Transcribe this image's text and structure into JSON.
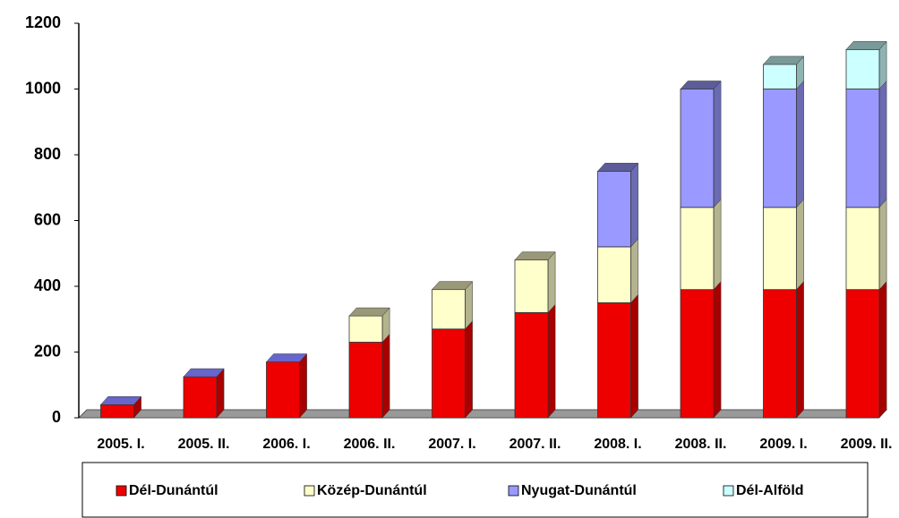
{
  "chart_data": {
    "type": "bar",
    "stacked": true,
    "categories": [
      "2005. I.",
      "2005. II.",
      "2006. I.",
      "2006. II.",
      "2007. I.",
      "2007. II.",
      "2008. I.",
      "2008. II.",
      "2009. I.",
      "2009. II."
    ],
    "series": [
      {
        "name": "Dél-Dunántúl",
        "color": "#ee0000",
        "values": [
          40,
          125,
          170,
          230,
          270,
          320,
          350,
          390,
          390,
          390
        ]
      },
      {
        "name": "Közép-Dunántúl",
        "color": "#ffffcc",
        "values": [
          0,
          0,
          0,
          80,
          120,
          160,
          170,
          250,
          250,
          250
        ]
      },
      {
        "name": "Nyugat-Dunántúl",
        "color": "#9999ff",
        "values": [
          0,
          0,
          0,
          0,
          0,
          0,
          230,
          360,
          360,
          360
        ]
      },
      {
        "name": "Dél-Alföld",
        "color": "#ccffff",
        "values": [
          0,
          0,
          0,
          0,
          0,
          0,
          0,
          0,
          75,
          120
        ]
      }
    ],
    "ylim": [
      0,
      1200
    ],
    "yticks": [
      0,
      200,
      400,
      600,
      800,
      1000,
      1200
    ],
    "legend": "bottom"
  }
}
